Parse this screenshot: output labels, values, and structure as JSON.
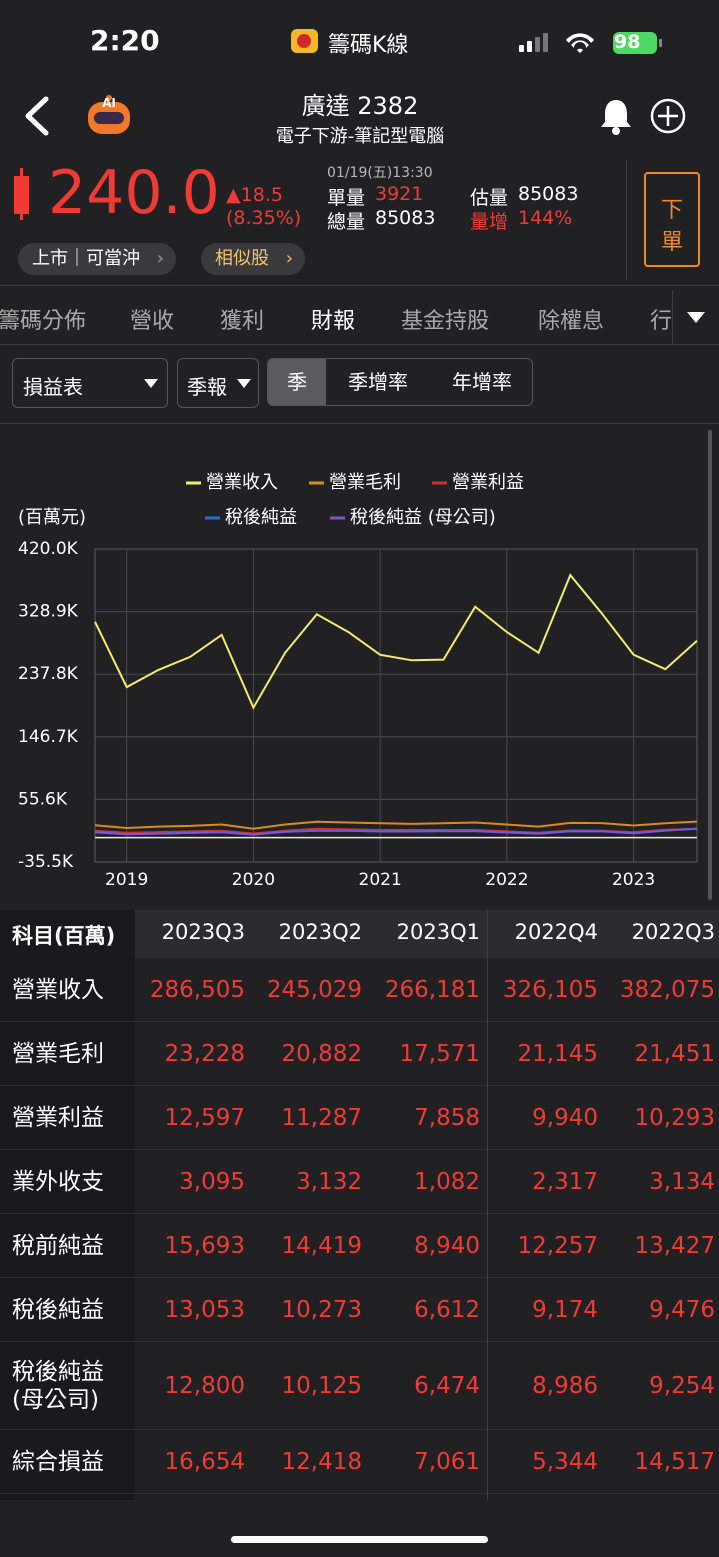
{
  "status_bar": {
    "time": "2:20",
    "app": "籌碼K線",
    "battery": "98"
  },
  "header": {
    "ai_icon": "AI",
    "title": "廣達 2382",
    "subtitle": "電子下游-筆記型電腦"
  },
  "quote": {
    "price": "240.0",
    "change": "▲18.5",
    "change_pct": "(8.35%)",
    "datetime": "01/19(五)13:30",
    "unit_volume_label": "單量",
    "unit_volume": "3921",
    "total_volume_label": "總量",
    "total_volume": "85083",
    "est_volume_label": "估量",
    "est_volume": "85083",
    "volume_increase_label": "量增",
    "volume_increase": "144%",
    "order_button": [
      "下",
      "單"
    ]
  },
  "tags": [
    "上市｜可當沖",
    "相似股"
  ],
  "tabs": [
    "籌碼分佈",
    "營收",
    "獲利",
    "財報",
    "基金持股",
    "除權息",
    "行"
  ],
  "active_tab": 3,
  "filters": {
    "statement": "損益表",
    "period": "季報",
    "modes": [
      "季",
      "季增率",
      "年增率"
    ],
    "active_mode": 0
  },
  "chart_data": {
    "type": "line",
    "y_label": "(百萬元)",
    "categories": [
      null,
      "2019",
      null,
      null,
      null,
      "2020",
      null,
      null,
      null,
      "2021",
      null,
      null,
      null,
      "2022",
      null,
      null,
      null,
      "2023",
      null,
      null
    ],
    "series": [
      {
        "name": "營業收入",
        "color": "#f3ea72",
        "values": [
          314000,
          219000,
          244000,
          263000,
          295000,
          189000,
          269000,
          325000,
          299000,
          266000,
          258000,
          259000,
          336000,
          299000,
          269000,
          382075,
          326105,
          266181,
          245029,
          286505
        ]
      },
      {
        "name": "營業毛利",
        "color": "#d98b1e",
        "values": [
          18000,
          14000,
          16000,
          17000,
          19000,
          13000,
          19000,
          23000,
          22000,
          21000,
          20000,
          21000,
          22000,
          19000,
          16000,
          21451,
          21145,
          17571,
          20882,
          23228
        ]
      },
      {
        "name": "營業利益",
        "color": "#c8372d",
        "values": [
          10000,
          7000,
          8000,
          9000,
          10000,
          6000,
          10000,
          13000,
          12000,
          11000,
          11000,
          11000,
          11000,
          9000,
          7000,
          10293,
          9940,
          7858,
          11287,
          12597
        ]
      },
      {
        "name": "稅後純益",
        "color": "#1f6fe0",
        "values": [
          8000,
          5000,
          6000,
          7000,
          8000,
          4500,
          8500,
          10000,
          10000,
          9000,
          9000,
          9500,
          9500,
          7500,
          6000,
          9476,
          9174,
          6612,
          10273,
          13053
        ]
      },
      {
        "name": "稅後純益 (母公司)",
        "color": "#7d52dc",
        "values": [
          7900,
          4900,
          5900,
          6900,
          7900,
          4400,
          8400,
          9900,
          9900,
          8900,
          8900,
          9400,
          9400,
          7400,
          5900,
          9254,
          8986,
          6474,
          10125,
          12800
        ]
      }
    ],
    "ylim": [
      -35500,
      420000
    ],
    "yticks": [
      {
        "value": 420000,
        "label": "420.0K"
      },
      {
        "value": 328900,
        "label": "328.9K"
      },
      {
        "value": 237800,
        "label": "237.8K"
      },
      {
        "value": 146700,
        "label": "146.7K"
      },
      {
        "value": 55600,
        "label": "55.6K"
      },
      {
        "value": -35500,
        "label": "-35.5K"
      }
    ],
    "grid": true
  },
  "table": {
    "header": [
      "科目(百萬)",
      "2023Q3",
      "2023Q2",
      "2023Q1",
      "2022Q4",
      "2022Q3"
    ],
    "rows": [
      {
        "label": "營業收入",
        "values": [
          "286,505",
          "245,029",
          "266,181",
          "326,105",
          "382,075"
        ]
      },
      {
        "label": "營業毛利",
        "values": [
          "23,228",
          "20,882",
          "17,571",
          "21,145",
          "21,451"
        ]
      },
      {
        "label": "營業利益",
        "values": [
          "12,597",
          "11,287",
          "7,858",
          "9,940",
          "10,293"
        ]
      },
      {
        "label": "業外收支",
        "values": [
          "3,095",
          "3,132",
          "1,082",
          "2,317",
          "3,134"
        ]
      },
      {
        "label": "稅前純益",
        "values": [
          "15,693",
          "14,419",
          "8,940",
          "12,257",
          "13,427"
        ]
      },
      {
        "label": "稅後純益",
        "values": [
          "13,053",
          "10,273",
          "6,612",
          "9,174",
          "9,476"
        ]
      },
      {
        "label": "稅後純益\n(母公司)",
        "values": [
          "12,800",
          "10,125",
          "6,474",
          "8,986",
          "9,254"
        ]
      },
      {
        "label": "綜合損益",
        "values": [
          "16,654",
          "12,418",
          "7,061",
          "5,344",
          "14,517"
        ]
      }
    ]
  }
}
